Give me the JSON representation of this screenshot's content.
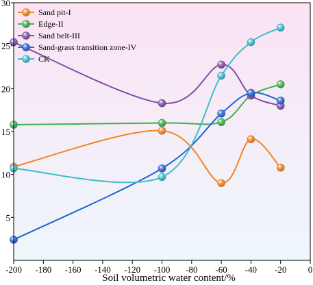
{
  "chart_data": {
    "type": "line",
    "xlabel": "Soil volumetric water content/%",
    "ylabel": "",
    "xlim": [
      -200,
      0
    ],
    "ylim": [
      0,
      30
    ],
    "x_ticks": [
      -200,
      -180,
      -160,
      -140,
      -120,
      -100,
      -80,
      -60,
      -40,
      -20,
      0
    ],
    "y_ticks": [
      5,
      10,
      15,
      20,
      25,
      30
    ],
    "legend_position": "top-left",
    "background_gradient": [
      "#fbe3f4",
      "#eef7fb"
    ],
    "series": [
      {
        "name": "Sand pit-I",
        "color": "#f5841f",
        "x": [
          -200,
          -100,
          -60,
          -40,
          -20
        ],
        "y": [
          10.9,
          15.1,
          9.0,
          14.1,
          10.8
        ]
      },
      {
        "name": "Edge-II",
        "color": "#3cb24a",
        "x": [
          -200,
          -100,
          -60,
          -40,
          -20
        ],
        "y": [
          15.8,
          16.0,
          16.1,
          19.2,
          20.5
        ]
      },
      {
        "name": "Sand belt-III",
        "color": "#7d4fa8",
        "x": [
          -200,
          -100,
          -60,
          -40,
          -20
        ],
        "y": [
          25.4,
          18.3,
          22.8,
          19.2,
          18.0
        ]
      },
      {
        "name": "Sand-grass transition zone-IV",
        "color": "#1f63d6",
        "x": [
          -200,
          -100,
          -60,
          -40,
          -20
        ],
        "y": [
          2.4,
          10.7,
          17.1,
          19.5,
          18.6
        ]
      },
      {
        "name": "CK",
        "color": "#3fbccb",
        "x": [
          -200,
          -100,
          -60,
          -40,
          -20
        ],
        "y": [
          10.7,
          9.7,
          21.5,
          25.4,
          27.1
        ]
      }
    ]
  }
}
